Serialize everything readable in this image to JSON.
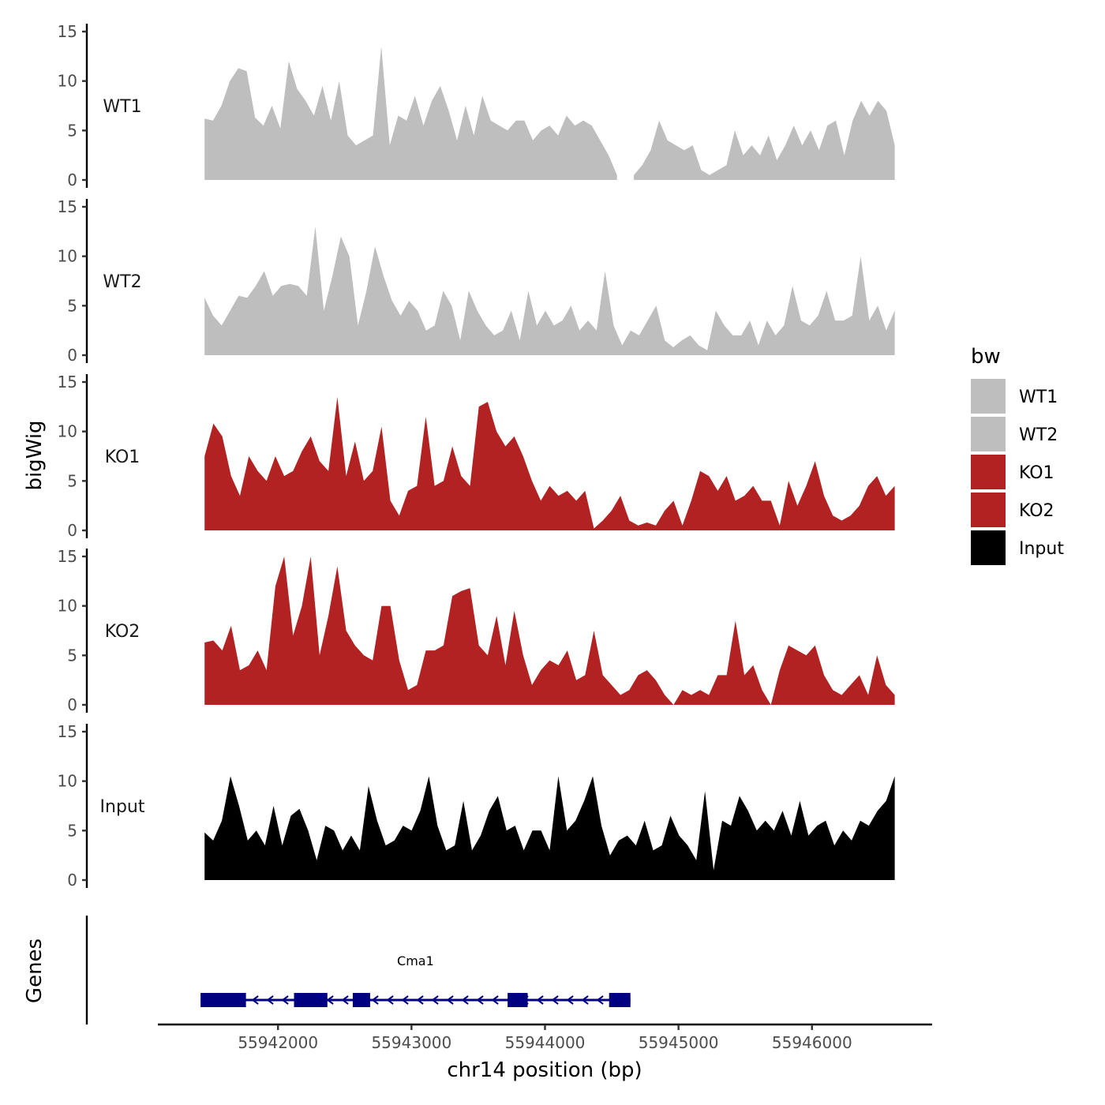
{
  "chart_data": {
    "type": "area",
    "xlabel": "chr14 position (bp)",
    "ylabel": "bigWig",
    "gene_panel_label": "Genes",
    "xlim": [
      55941100,
      55946900
    ],
    "ylim": [
      0,
      15
    ],
    "x_ticks": [
      55942000,
      55943000,
      55944000,
      55945000,
      55946000
    ],
    "x_tick_labels": [
      "55942000",
      "55943000",
      "55944000",
      "55945000",
      "55946000"
    ],
    "y_ticks": [
      0,
      5,
      10,
      15
    ],
    "y_tick_labels": [
      "0",
      "5",
      "10",
      "15"
    ],
    "data_range": [
      55941450,
      55946620
    ],
    "legend": {
      "title": "bw",
      "entries": [
        {
          "label": "WT1",
          "color": "#bebebe"
        },
        {
          "label": "WT2",
          "color": "#bebebe"
        },
        {
          "label": "KO1",
          "color": "#b22222"
        },
        {
          "label": "KO2",
          "color": "#b22222"
        },
        {
          "label": "Input",
          "color": "#000000"
        }
      ]
    },
    "series": [
      {
        "name": "WT1",
        "color": "#bebebe",
        "values": [
          6.2,
          6.0,
          7.5,
          10.0,
          11.3,
          11.0,
          6.3,
          5.5,
          7.5,
          5.2,
          12.0,
          9.2,
          8.0,
          6.5,
          9.5,
          6.0,
          10.0,
          4.5,
          3.5,
          4.0,
          4.5,
          13.5,
          3.5,
          6.5,
          6.0,
          8.5,
          5.5,
          8.0,
          9.5,
          7.0,
          4.0,
          7.5,
          4.5,
          8.5,
          6.0,
          5.5,
          5.0,
          6.0,
          6.0,
          4.0,
          5.0,
          5.5,
          4.5,
          6.5,
          5.5,
          6.0,
          5.5,
          4.0,
          2.5,
          0.5,
          null,
          0.5,
          1.5,
          3.0,
          6.0,
          4.0,
          3.5,
          3.0,
          3.5,
          1.0,
          0.5,
          1.0,
          1.5,
          5.0,
          2.5,
          3.5,
          2.5,
          4.5,
          2.0,
          3.5,
          5.5,
          3.5,
          5.0,
          3.0,
          5.5,
          6.0,
          2.5,
          6.0,
          8.0,
          6.5,
          8.0,
          7.0,
          3.5
        ]
      },
      {
        "name": "WT2",
        "color": "#bebebe",
        "values": [
          5.8,
          4.0,
          3.0,
          4.5,
          6.0,
          5.8,
          7.0,
          8.5,
          6.0,
          7.0,
          7.2,
          7.0,
          6.0,
          13.0,
          4.5,
          8.0,
          12.0,
          10.0,
          3.0,
          6.5,
          11.0,
          8.0,
          5.5,
          4.0,
          5.5,
          4.5,
          2.5,
          3.0,
          6.5,
          5.0,
          1.5,
          6.5,
          4.5,
          3.0,
          2.0,
          2.5,
          4.5,
          1.5,
          6.5,
          3.0,
          4.5,
          3.0,
          3.5,
          5.0,
          2.5,
          3.5,
          2.5,
          8.5,
          3.0,
          1.0,
          2.5,
          2.0,
          3.5,
          5.0,
          1.5,
          0.8,
          1.5,
          2.0,
          1.0,
          0.5,
          4.5,
          3.0,
          2.0,
          2.0,
          3.5,
          1.0,
          3.5,
          2.0,
          3.0,
          7.0,
          3.5,
          3.0,
          4.0,
          6.5,
          3.5,
          3.5,
          4.0,
          10.0,
          3.5,
          5.0,
          2.5,
          4.5
        ]
      },
      {
        "name": "KO1",
        "color": "#b22222",
        "values": [
          7.5,
          10.8,
          9.5,
          5.5,
          3.5,
          7.5,
          6.0,
          5.0,
          7.5,
          5.5,
          6.0,
          8.0,
          9.5,
          7.0,
          6.0,
          13.5,
          5.5,
          9.0,
          5.0,
          6.0,
          10.5,
          3.0,
          1.5,
          4.0,
          4.5,
          11.5,
          4.5,
          5.0,
          8.5,
          5.5,
          4.5,
          12.5,
          13.0,
          10.0,
          8.5,
          9.5,
          7.5,
          5.0,
          3.0,
          4.5,
          3.5,
          4.0,
          3.0,
          4.0,
          0.2,
          1.0,
          2.0,
          3.5,
          1.0,
          0.5,
          0.8,
          0.5,
          2.0,
          3.0,
          0.5,
          3.0,
          6.0,
          5.5,
          4.0,
          5.5,
          3.0,
          3.5,
          4.5,
          3.0,
          3.0,
          0.5,
          5.0,
          2.5,
          4.5,
          7.0,
          3.5,
          1.5,
          1.0,
          1.5,
          2.5,
          4.5,
          5.5,
          3.5,
          4.5
        ]
      },
      {
        "name": "KO2",
        "color": "#b22222",
        "values": [
          6.3,
          6.5,
          5.5,
          8.0,
          3.5,
          4.0,
          5.5,
          3.5,
          12.0,
          15.0,
          7.0,
          10.0,
          15.0,
          5.0,
          9.0,
          14.0,
          7.5,
          6.0,
          5.0,
          4.5,
          10.0,
          10.0,
          4.5,
          1.5,
          2.0,
          5.5,
          5.5,
          6.0,
          11.0,
          11.5,
          11.8,
          6.0,
          5.0,
          9.0,
          4.0,
          9.5,
          5.0,
          2.0,
          3.5,
          4.5,
          4.0,
          5.5,
          2.5,
          3.0,
          7.5,
          3.0,
          2.0,
          1.0,
          1.5,
          3.0,
          3.5,
          2.5,
          1.0,
          0.0,
          1.5,
          1.0,
          1.5,
          1.0,
          3.0,
          3.0,
          8.5,
          3.0,
          4.0,
          1.5,
          0.0,
          3.5,
          6.0,
          5.5,
          5.0,
          6.0,
          3.0,
          1.5,
          1.0,
          2.0,
          3.0,
          1.0,
          5.0,
          2.0,
          1.0
        ]
      },
      {
        "name": "Input",
        "color": "#000000",
        "values": [
          4.8,
          4.0,
          6.0,
          10.5,
          7.5,
          4.0,
          5.0,
          3.5,
          7.5,
          3.5,
          6.5,
          7.2,
          5.0,
          2.0,
          5.5,
          5.0,
          3.0,
          4.5,
          3.0,
          9.5,
          6.0,
          3.5,
          4.0,
          5.5,
          5.0,
          7.0,
          10.5,
          5.5,
          3.0,
          3.5,
          8.0,
          3.0,
          4.5,
          7.0,
          8.5,
          5.0,
          5.5,
          3.0,
          5.0,
          5.0,
          3.0,
          10.5,
          5.0,
          6.0,
          8.0,
          10.5,
          5.5,
          2.5,
          4.0,
          4.5,
          3.5,
          6.0,
          3.0,
          3.5,
          6.5,
          4.5,
          3.5,
          2.0,
          9.0,
          1.0,
          6.0,
          5.5,
          8.5,
          7.0,
          5.0,
          6.0,
          5.0,
          7.0,
          4.5,
          8.0,
          4.5,
          5.5,
          6.0,
          3.5,
          5.0,
          4.0,
          6.0,
          5.5,
          7.0,
          8.0,
          10.5
        ]
      }
    ],
    "gene": {
      "name": "Cma1",
      "strand": "-",
      "start": 55941420,
      "end": 55944640,
      "exons": [
        [
          55941420,
          55941760
        ],
        [
          55942120,
          55942370
        ],
        [
          55942560,
          55942690
        ],
        [
          55943720,
          55943870
        ],
        [
          55944480,
          55944640
        ]
      ]
    }
  }
}
